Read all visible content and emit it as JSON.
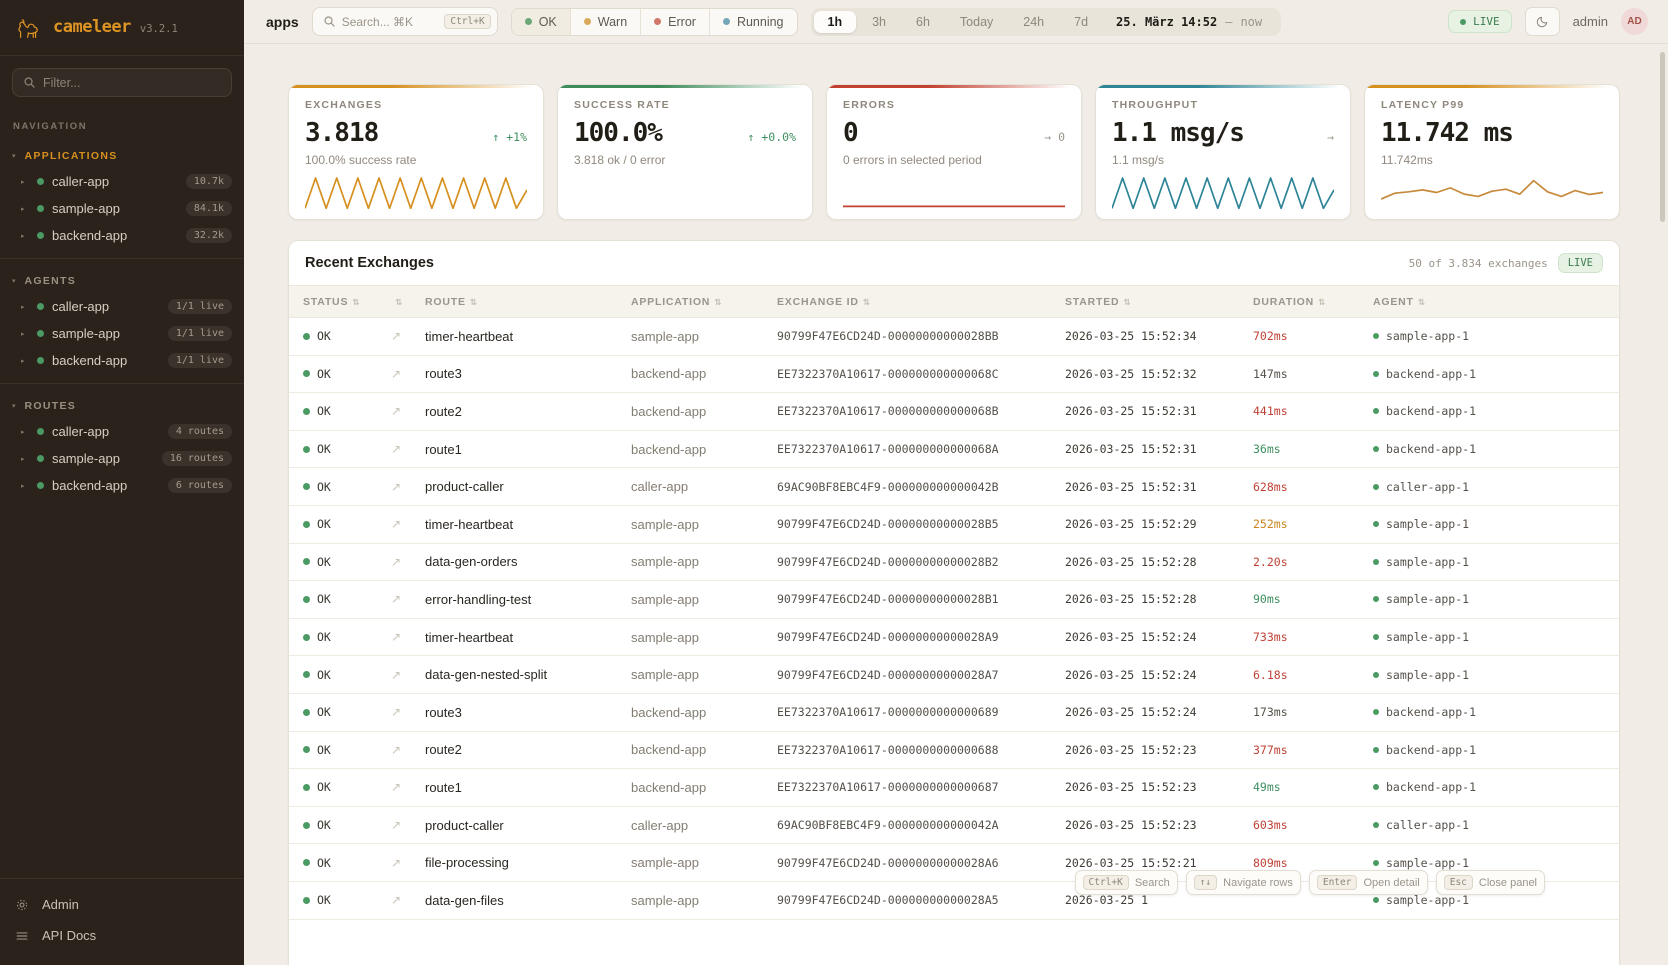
{
  "sidebar": {
    "logo_text": "cameleer",
    "version": "v3.2.1",
    "filter_placeholder": "Filter...",
    "nav_label": "NAVIGATION",
    "groups": [
      {
        "label": "APPLICATIONS",
        "accent": true,
        "items": [
          {
            "name": "caller-app",
            "badge": "10.7k"
          },
          {
            "name": "sample-app",
            "badge": "84.1k"
          },
          {
            "name": "backend-app",
            "badge": "32.2k"
          }
        ]
      },
      {
        "label": "AGENTS",
        "accent": false,
        "items": [
          {
            "name": "caller-app",
            "badge": "1/1 live"
          },
          {
            "name": "sample-app",
            "badge": "1/1 live"
          },
          {
            "name": "backend-app",
            "badge": "1/1 live"
          }
        ]
      },
      {
        "label": "ROUTES",
        "accent": false,
        "items": [
          {
            "name": "caller-app",
            "badge": "4 routes"
          },
          {
            "name": "sample-app",
            "badge": "16 routes"
          },
          {
            "name": "backend-app",
            "badge": "6 routes"
          }
        ]
      }
    ],
    "admin_label": "Admin",
    "api_docs_label": "API Docs"
  },
  "header": {
    "context": "apps",
    "search_placeholder": "Search... ⌘K",
    "search_kbd": "Ctrl+K",
    "status_filters": [
      {
        "label": "OK",
        "color": "#6aa878",
        "active": true
      },
      {
        "label": "Warn",
        "color": "#d9a85c",
        "active": false
      },
      {
        "label": "Error",
        "color": "#d0766a",
        "active": false
      },
      {
        "label": "Running",
        "color": "#74a7b8",
        "active": false
      }
    ],
    "time_ranges": [
      "1h",
      "3h",
      "6h",
      "Today",
      "24h",
      "7d"
    ],
    "active_range": "1h",
    "date_from": "25. März 14:52",
    "date_sep": "—",
    "date_to": "now",
    "live_label": "LIVE",
    "user": "admin",
    "avatar": "AD"
  },
  "cards": [
    {
      "label": "EXCHANGES",
      "value": "3.818",
      "trend_icon": "↑",
      "trend": "+1%",
      "trend_color": "green",
      "sub": "100.0% success rate",
      "accent": "#d6901f",
      "spark": {
        "color": "#d6901f",
        "points": [
          98,
          6,
          98,
          6,
          98,
          6,
          98,
          6,
          98,
          6,
          98,
          6,
          98,
          6,
          98,
          6,
          98,
          6,
          98,
          6,
          98,
          42
        ]
      }
    },
    {
      "label": "SUCCESS RATE",
      "value": "100.0%",
      "trend_icon": "↑",
      "trend": "+0.0%",
      "trend_color": "green",
      "sub": "3.818 ok / 0 error",
      "accent": "#3d8b5a",
      "spark": null
    },
    {
      "label": "ERRORS",
      "value": "0",
      "trend_icon": "→",
      "trend": "0",
      "trend_color": "gray",
      "sub": "0 errors in selected period",
      "accent": "#c2402f",
      "spark": {
        "color": "#c2402f",
        "points": [
          92,
          92
        ]
      }
    },
    {
      "label": "THROUGHPUT",
      "value": "1.1 msg/s",
      "trend_icon": "→",
      "trend": "",
      "trend_color": "gray",
      "sub": "1.1 msg/s",
      "accent": "#2e8596",
      "spark": {
        "color": "#2e8596",
        "points": [
          98,
          6,
          98,
          6,
          98,
          6,
          98,
          6,
          98,
          6,
          98,
          6,
          98,
          6,
          98,
          6,
          98,
          6,
          98,
          6,
          98,
          42
        ]
      }
    },
    {
      "label": "LATENCY P99",
      "value": "11.742 ms",
      "trend_icon": "",
      "trend": "",
      "trend_color": "gray",
      "sub": "11.742ms",
      "accent": "#d6901f",
      "spark": {
        "color": "#c78a3b",
        "points": [
          70,
          52,
          48,
          42,
          50,
          36,
          55,
          62,
          46,
          40,
          55,
          14,
          48,
          62,
          44,
          56,
          50
        ]
      }
    }
  ],
  "table": {
    "title": "Recent Exchanges",
    "count_text": "50 of 3.834 exchanges",
    "live_label": "LIVE",
    "columns": [
      "STATUS",
      "",
      "ROUTE",
      "APPLICATION",
      "EXCHANGE ID",
      "STARTED",
      "DURATION",
      "AGENT"
    ],
    "rows": [
      {
        "status": "OK",
        "route": "timer-heartbeat",
        "app": "sample-app",
        "id": "90799F47E6CD24D-00000000000028BB",
        "started": "2026-03-25 15:52:34",
        "duration": "702ms",
        "dcolor": "red",
        "agent": "sample-app-1"
      },
      {
        "status": "OK",
        "route": "route3",
        "app": "backend-app",
        "id": "EE7322370A10617-000000000000068C",
        "started": "2026-03-25 15:52:32",
        "duration": "147ms",
        "dcolor": "def",
        "agent": "backend-app-1"
      },
      {
        "status": "OK",
        "route": "route2",
        "app": "backend-app",
        "id": "EE7322370A10617-000000000000068B",
        "started": "2026-03-25 15:52:31",
        "duration": "441ms",
        "dcolor": "red",
        "agent": "backend-app-1"
      },
      {
        "status": "OK",
        "route": "route1",
        "app": "backend-app",
        "id": "EE7322370A10617-000000000000068A",
        "started": "2026-03-25 15:52:31",
        "duration": "36ms",
        "dcolor": "green",
        "agent": "backend-app-1"
      },
      {
        "status": "OK",
        "route": "product-caller",
        "app": "caller-app",
        "id": "69AC90BF8EBC4F9-000000000000042B",
        "started": "2026-03-25 15:52:31",
        "duration": "628ms",
        "dcolor": "red",
        "agent": "caller-app-1"
      },
      {
        "status": "OK",
        "route": "timer-heartbeat",
        "app": "sample-app",
        "id": "90799F47E6CD24D-00000000000028B5",
        "started": "2026-03-25 15:52:29",
        "duration": "252ms",
        "dcolor": "amber",
        "agent": "sample-app-1"
      },
      {
        "status": "OK",
        "route": "data-gen-orders",
        "app": "sample-app",
        "id": "90799F47E6CD24D-00000000000028B2",
        "started": "2026-03-25 15:52:28",
        "duration": "2.20s",
        "dcolor": "red",
        "agent": "sample-app-1"
      },
      {
        "status": "OK",
        "route": "error-handling-test",
        "app": "sample-app",
        "id": "90799F47E6CD24D-00000000000028B1",
        "started": "2026-03-25 15:52:28",
        "duration": "90ms",
        "dcolor": "green",
        "agent": "sample-app-1"
      },
      {
        "status": "OK",
        "route": "timer-heartbeat",
        "app": "sample-app",
        "id": "90799F47E6CD24D-00000000000028A9",
        "started": "2026-03-25 15:52:24",
        "duration": "733ms",
        "dcolor": "red",
        "agent": "sample-app-1"
      },
      {
        "status": "OK",
        "route": "data-gen-nested-split",
        "app": "sample-app",
        "id": "90799F47E6CD24D-00000000000028A7",
        "started": "2026-03-25 15:52:24",
        "duration": "6.18s",
        "dcolor": "red",
        "agent": "sample-app-1"
      },
      {
        "status": "OK",
        "route": "route3",
        "app": "backend-app",
        "id": "EE7322370A10617-0000000000000689",
        "started": "2026-03-25 15:52:24",
        "duration": "173ms",
        "dcolor": "def",
        "agent": "backend-app-1"
      },
      {
        "status": "OK",
        "route": "route2",
        "app": "backend-app",
        "id": "EE7322370A10617-0000000000000688",
        "started": "2026-03-25 15:52:23",
        "duration": "377ms",
        "dcolor": "red",
        "agent": "backend-app-1"
      },
      {
        "status": "OK",
        "route": "route1",
        "app": "backend-app",
        "id": "EE7322370A10617-0000000000000687",
        "started": "2026-03-25 15:52:23",
        "duration": "49ms",
        "dcolor": "green",
        "agent": "backend-app-1"
      },
      {
        "status": "OK",
        "route": "product-caller",
        "app": "caller-app",
        "id": "69AC90BF8EBC4F9-000000000000042A",
        "started": "2026-03-25 15:52:23",
        "duration": "603ms",
        "dcolor": "red",
        "agent": "caller-app-1"
      },
      {
        "status": "OK",
        "route": "file-processing",
        "app": "sample-app",
        "id": "90799F47E6CD24D-00000000000028A6",
        "started": "2026-03-25 15:52:21",
        "duration": "809ms",
        "dcolor": "red",
        "agent": "sample-app-1"
      },
      {
        "status": "OK",
        "route": "data-gen-files",
        "app": "sample-app",
        "id": "90799F47E6CD24D-00000000000028A5",
        "started": "2026-03-25 1",
        "duration": "",
        "dcolor": "def",
        "agent": "sample-app-1"
      }
    ]
  },
  "shortcuts": [
    {
      "key": "Ctrl+K",
      "label": "Search"
    },
    {
      "key": "↑↓",
      "label": "Navigate rows"
    },
    {
      "key": "Enter",
      "label": "Open detail"
    },
    {
      "key": "Esc",
      "label": "Close panel"
    }
  ]
}
